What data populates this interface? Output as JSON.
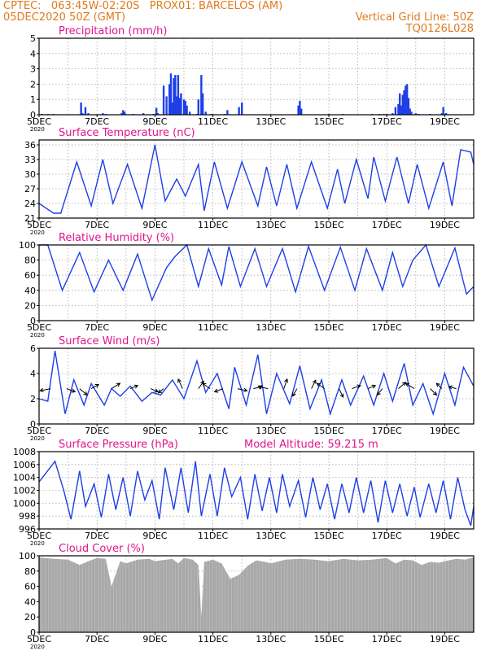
{
  "header": {
    "left1": "CPTEC:   063:45W-02:20S   PROX01: BARCELOS (AM)",
    "left2": "05DEC2020 50Z (GMT)",
    "right1": "Vertical Grid Line: 50Z",
    "right2": "TQ0126L028"
  },
  "colors": {
    "header": "#e07a1e",
    "title": "#e0148c",
    "line": "#1f3fe6",
    "bar": "#1f3fe6",
    "cloud": "#a8a8a8"
  },
  "x_labels": [
    "5DEC",
    "7DEC",
    "9DEC",
    "11DEC",
    "13DEC",
    "15DEC",
    "17DEC",
    "19DEC"
  ],
  "x_range_days": [
    5,
    20
  ],
  "year_fragment": "2020",
  "chart_data": [
    {
      "id": "precip",
      "type": "bar",
      "title": "Precipitation  (mm/h)",
      "ylim": [
        0,
        5
      ],
      "yticks": [
        0,
        1,
        2,
        3,
        4,
        5
      ],
      "x": [
        5.1,
        5.3,
        5.5,
        6.45,
        6.5,
        6.6,
        6.7,
        7.2,
        7.3,
        7.85,
        7.9,
        7.95,
        8.25,
        8.6,
        8.95,
        9.05,
        9.1,
        9.3,
        9.4,
        9.5,
        9.55,
        9.6,
        9.65,
        9.7,
        9.75,
        9.8,
        9.85,
        9.9,
        10.0,
        10.05,
        10.1,
        10.2,
        10.45,
        10.5,
        10.6,
        10.65,
        10.75,
        10.95,
        11.4,
        11.5,
        11.9,
        12.0,
        13.95,
        14.0,
        14.05,
        15.0,
        15.5,
        16.5,
        16.75,
        16.9,
        17.0,
        17.2,
        17.3,
        17.4,
        17.45,
        17.5,
        17.55,
        17.6,
        17.65,
        17.7,
        17.75,
        17.8,
        17.85,
        18.0,
        18.1,
        18.5,
        18.9,
        18.95,
        19.05
      ],
      "values": [
        0.05,
        0.05,
        0.05,
        0.8,
        0.1,
        0.5,
        0.1,
        0.1,
        0.05,
        0.1,
        0.3,
        0.2,
        0.05,
        0.1,
        0.05,
        0.45,
        0.1,
        1.9,
        1.2,
        2.0,
        2.7,
        0.8,
        2.4,
        2.6,
        1.2,
        2.6,
        1.1,
        1.4,
        1.0,
        0.9,
        0.6,
        0.2,
        0.05,
        1.0,
        2.6,
        1.4,
        0.2,
        0.05,
        0.05,
        0.3,
        0.5,
        0.8,
        0.6,
        0.9,
        0.4,
        0.05,
        0.05,
        0.05,
        0.05,
        0.05,
        0.05,
        0.1,
        0.5,
        0.7,
        1.4,
        0.6,
        1.3,
        1.6,
        1.9,
        2.0,
        1.1,
        0.4,
        0.2,
        0.1,
        0.05,
        0.05,
        0.1,
        0.5,
        0.1
      ]
    },
    {
      "id": "temp",
      "type": "line",
      "title": "Surface Temperature  (nC)",
      "ylim": [
        21,
        37
      ],
      "yticks": [
        21,
        24,
        27,
        30,
        33,
        36
      ],
      "x": [
        5.0,
        5.5,
        5.75,
        6.3,
        6.8,
        7.2,
        7.55,
        8.05,
        8.55,
        9.0,
        9.35,
        9.75,
        10.05,
        10.5,
        10.7,
        11.05,
        11.5,
        12.0,
        12.55,
        12.85,
        13.2,
        13.55,
        13.9,
        14.4,
        14.95,
        15.3,
        15.55,
        15.95,
        16.35,
        16.55,
        16.95,
        17.35,
        17.75,
        18.05,
        18.45,
        18.95,
        19.25,
        19.55,
        19.9,
        20.0
      ],
      "values": [
        24.0,
        22.0,
        22.0,
        32.5,
        23.5,
        33.0,
        24.0,
        32.0,
        23.0,
        36.0,
        24.5,
        29.0,
        25.5,
        32.0,
        22.5,
        32.5,
        23.0,
        32.5,
        23.5,
        31.5,
        23.5,
        32.0,
        23.0,
        32.5,
        23.0,
        31.0,
        24.0,
        33.0,
        25.0,
        33.5,
        24.5,
        33.5,
        24.0,
        32.0,
        23.0,
        32.5,
        23.5,
        35.0,
        34.5,
        32.0
      ]
    },
    {
      "id": "rh",
      "type": "line",
      "title": "Relative Humidity  (%)",
      "ylim": [
        0,
        100
      ],
      "yticks": [
        0,
        20,
        40,
        60,
        80,
        100
      ],
      "x": [
        5.0,
        5.3,
        5.8,
        6.4,
        6.9,
        7.4,
        7.9,
        8.4,
        8.9,
        9.4,
        9.7,
        10.1,
        10.5,
        10.85,
        11.3,
        11.55,
        11.95,
        12.45,
        12.85,
        13.4,
        13.85,
        14.3,
        14.85,
        15.4,
        15.9,
        16.3,
        16.85,
        17.2,
        17.55,
        17.9,
        18.35,
        18.8,
        19.35,
        19.75,
        20.0
      ],
      "values": [
        100,
        100,
        40,
        90,
        38,
        80,
        40,
        88,
        27,
        70,
        85,
        100,
        45,
        95,
        47,
        98,
        45,
        95,
        45,
        95,
        38,
        98,
        40,
        97,
        40,
        95,
        40,
        90,
        45,
        80,
        100,
        45,
        96,
        35,
        45
      ]
    },
    {
      "id": "wind",
      "type": "line",
      "title": "Surface Wind  (m/s)",
      "ylim": [
        0,
        6
      ],
      "yticks": [
        0,
        2,
        4,
        6
      ],
      "x": [
        5.0,
        5.3,
        5.55,
        5.9,
        6.2,
        6.55,
        6.8,
        7.25,
        7.5,
        7.8,
        8.15,
        8.55,
        8.9,
        9.2,
        9.6,
        10.0,
        10.45,
        10.75,
        11.15,
        11.55,
        11.75,
        12.15,
        12.55,
        12.85,
        13.2,
        13.65,
        14.0,
        14.35,
        14.75,
        15.05,
        15.45,
        15.75,
        16.2,
        16.55,
        16.9,
        17.2,
        17.6,
        17.9,
        18.25,
        18.6,
        19.0,
        19.35,
        19.65,
        20.0
      ],
      "values": [
        2.0,
        1.8,
        5.8,
        0.8,
        3.5,
        1.5,
        3.2,
        1.5,
        2.8,
        2.2,
        3.0,
        1.8,
        2.5,
        2.3,
        3.5,
        2.0,
        5.0,
        2.5,
        4.0,
        1.2,
        4.5,
        1.5,
        5.5,
        0.8,
        4.0,
        1.6,
        4.6,
        1.2,
        3.5,
        0.8,
        3.5,
        1.5,
        3.8,
        1.5,
        4.0,
        1.8,
        4.8,
        1.5,
        3.2,
        0.8,
        4.0,
        1.5,
        4.5,
        3.0
      ],
      "arrows": [
        {
          "x": 5.4,
          "u": -1.0,
          "v": -0.2
        },
        {
          "x": 5.95,
          "u": 0.8,
          "v": -0.3
        },
        {
          "x": 6.4,
          "u": 0.7,
          "v": -0.6
        },
        {
          "x": 6.8,
          "u": 0.7,
          "v": 0.4
        },
        {
          "x": 7.5,
          "u": 0.8,
          "v": 0.5
        },
        {
          "x": 8.15,
          "u": 0.7,
          "v": 0.3
        },
        {
          "x": 8.85,
          "u": 0.7,
          "v": -0.3
        },
        {
          "x": 9.3,
          "u": -0.5,
          "v": -0.4
        },
        {
          "x": 9.95,
          "u": -0.4,
          "v": 0.9
        },
        {
          "x": 10.5,
          "u": 0.5,
          "v": 0.7
        },
        {
          "x": 10.9,
          "u": -0.7,
          "v": 0.5
        },
        {
          "x": 11.35,
          "u": -0.8,
          "v": -0.3
        },
        {
          "x": 11.85,
          "u": 0.9,
          "v": -0.2
        },
        {
          "x": 12.4,
          "u": 0.8,
          "v": 0.2
        },
        {
          "x": 12.9,
          "u": -0.9,
          "v": 0.2
        },
        {
          "x": 13.45,
          "u": 0.3,
          "v": 0.9
        },
        {
          "x": 13.9,
          "u": -0.4,
          "v": -0.7
        },
        {
          "x": 14.4,
          "u": 0.4,
          "v": 0.8
        },
        {
          "x": 14.85,
          "u": -0.7,
          "v": 0.5
        },
        {
          "x": 15.35,
          "u": 0.4,
          "v": -0.8
        },
        {
          "x": 15.8,
          "u": 0.8,
          "v": 0.3
        },
        {
          "x": 16.35,
          "u": 0.7,
          "v": 0.3
        },
        {
          "x": 16.85,
          "u": -0.5,
          "v": -0.6
        },
        {
          "x": 17.4,
          "u": 0.7,
          "v": 0.6
        },
        {
          "x": 17.95,
          "u": -0.8,
          "v": 0.5
        },
        {
          "x": 18.5,
          "u": 0.6,
          "v": -0.6
        },
        {
          "x": 18.9,
          "u": -0.5,
          "v": 0.5
        },
        {
          "x": 19.4,
          "u": -0.7,
          "v": 0.2
        }
      ]
    },
    {
      "id": "pres",
      "type": "line",
      "title": "Surface Pressure  (hPa)",
      "extra": "Model Altitude: 59.215  m",
      "ylim": [
        996,
        1008
      ],
      "yticks": [
        996,
        998,
        1000,
        1002,
        1004,
        1006,
        1008
      ],
      "x": [
        5.0,
        5.55,
        5.85,
        6.1,
        6.4,
        6.6,
        6.9,
        7.15,
        7.4,
        7.65,
        7.9,
        8.15,
        8.4,
        8.65,
        8.9,
        9.15,
        9.35,
        9.65,
        9.9,
        10.15,
        10.4,
        10.6,
        10.9,
        11.15,
        11.4,
        11.65,
        11.95,
        12.2,
        12.45,
        12.7,
        12.95,
        13.2,
        13.4,
        13.65,
        13.95,
        14.2,
        14.45,
        14.7,
        14.95,
        15.2,
        15.45,
        15.7,
        15.95,
        16.2,
        16.45,
        16.7,
        16.95,
        17.2,
        17.45,
        17.7,
        17.95,
        18.15,
        18.45,
        18.7,
        18.95,
        19.2,
        19.45,
        19.7,
        19.9,
        20.0
      ],
      "values": [
        1003.3,
        1006.5,
        1002.0,
        997.5,
        1005.0,
        999.5,
        1003.0,
        997.8,
        1004.5,
        999.0,
        1004.0,
        998.0,
        1005.0,
        1000.5,
        1003.5,
        997.5,
        1005.5,
        999.0,
        1005.5,
        998.5,
        1006.5,
        998.0,
        1004.5,
        998.0,
        1005.5,
        1001.0,
        1004.0,
        997.5,
        1004.5,
        998.8,
        1004.0,
        998.5,
        1004.5,
        999.5,
        1003.5,
        997.8,
        1004.0,
        999.0,
        1003.0,
        997.5,
        1003.0,
        998.5,
        1004.0,
        998.5,
        1003.5,
        997.0,
        1003.5,
        998.5,
        1003.0,
        998.0,
        1002.5,
        997.8,
        1003.0,
        998.5,
        1003.5,
        997.5,
        1004.0,
        999.0,
        996.5,
        999.5
      ]
    },
    {
      "id": "cloud",
      "type": "area",
      "title": "Cloud Cover  (%)",
      "ylim": [
        0,
        100
      ],
      "yticks": [
        0,
        20,
        40,
        60,
        80,
        100
      ],
      "x": [
        5.0,
        5.5,
        6.0,
        6.4,
        6.7,
        7.0,
        7.3,
        7.5,
        7.8,
        8.0,
        8.4,
        8.8,
        9.0,
        9.2,
        9.4,
        9.6,
        9.8,
        10.0,
        10.3,
        10.5,
        10.6,
        10.7,
        11.0,
        11.3,
        11.6,
        11.9,
        12.2,
        12.5,
        12.8,
        13.0,
        13.5,
        14.0,
        14.5,
        15.0,
        15.5,
        16.0,
        16.5,
        17.0,
        17.3,
        17.6,
        17.9,
        18.2,
        18.5,
        18.8,
        19.0,
        19.4,
        19.7,
        20.0
      ],
      "values": [
        98,
        96,
        95,
        88,
        93,
        97,
        96,
        60,
        93,
        90,
        95,
        96,
        93,
        94,
        95,
        96,
        90,
        97,
        95,
        88,
        20,
        92,
        95,
        90,
        70,
        75,
        87,
        94,
        92,
        90,
        95,
        96,
        95,
        93,
        96,
        94,
        95,
        97,
        90,
        95,
        94,
        88,
        92,
        91,
        93,
        96,
        95,
        98
      ]
    }
  ]
}
